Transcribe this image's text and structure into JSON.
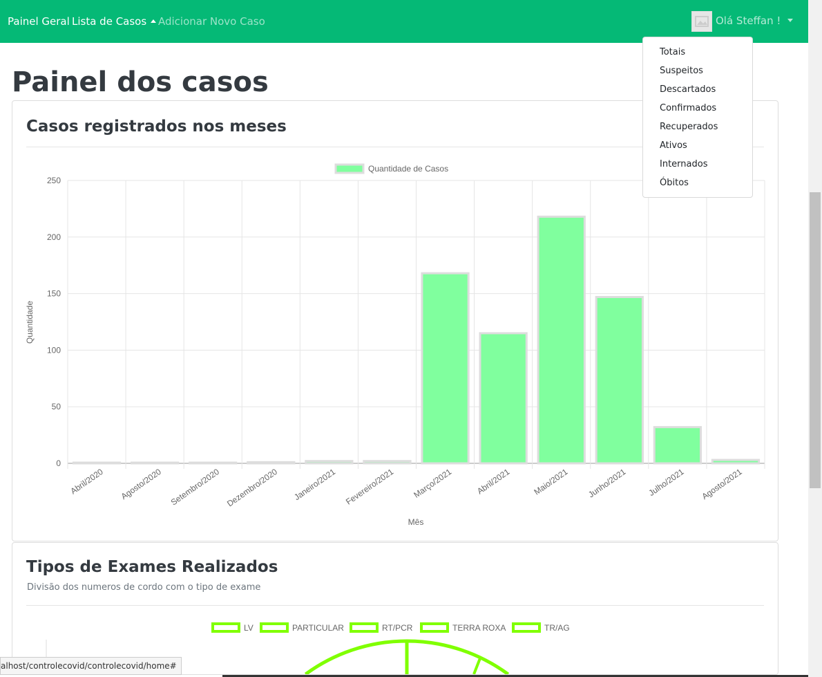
{
  "nav": {
    "home": "Painel Geral",
    "cases": "Lista de Casos",
    "add": "Adicionar Novo Caso",
    "user": "Olá Steffan !"
  },
  "dropdown": [
    "Totais",
    "Suspeitos",
    "Descartados",
    "Confirmados",
    "Recuperados",
    "Ativos",
    "Internados",
    "Óbitos"
  ],
  "page_title": "Painel dos casos",
  "card1": {
    "title": "Casos registrados nos meses"
  },
  "card2": {
    "title": "Tipos de Exames Realizados",
    "subtitle": "Divisão dos numeros de cordo com o tipo de exame"
  },
  "status_url": "alhost/controlecovid/controlecovid/home#",
  "chart_data": [
    {
      "type": "bar",
      "legend": "Quantidade de Casos",
      "xlabel": "Mês",
      "ylabel": "Quantidade",
      "ylim": [
        0,
        250
      ],
      "yticks": [
        0,
        50,
        100,
        150,
        200,
        250
      ],
      "categories": [
        "Abril/2020",
        "Agosto/2020",
        "Setembro/2020",
        "Dezembro/2020",
        "Janeiro/2021",
        "Fevereiro/2021",
        "Março/2021",
        "Abril/2021",
        "Maio/2021",
        "Junho/2021",
        "Julho/2021",
        "Agosto/2021"
      ],
      "values": [
        0,
        0,
        0,
        1,
        2,
        2,
        168,
        115,
        218,
        147,
        32,
        3
      ],
      "color": "#80ff9e",
      "grid": true,
      "legend_position": "top"
    },
    {
      "type": "pie",
      "labels": [
        "LV",
        "PARTICULAR",
        "RT/PCR",
        "TERRA ROXA",
        "TR/AG"
      ],
      "color": "#80ff00",
      "legend_position": "top"
    }
  ]
}
